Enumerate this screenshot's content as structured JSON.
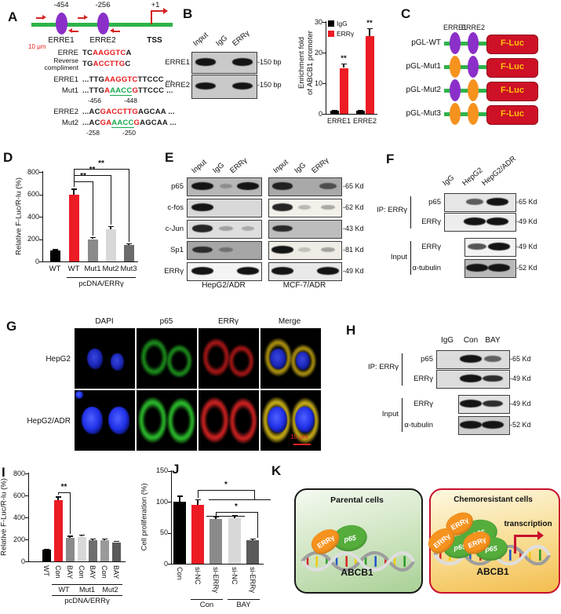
{
  "panel_labels": {
    "A": "A",
    "B": "B",
    "C": "C",
    "D": "D",
    "E": "E",
    "F": "F",
    "G": "G",
    "H": "H",
    "I": "I",
    "J": "J",
    "K": "K"
  },
  "panelA": {
    "erre1_pos": "-454",
    "erre2_pos": "-256",
    "tss_pos": "+1",
    "site_labels": [
      "ERRE1",
      "ERRE2",
      "TSS"
    ],
    "seq_rows": [
      {
        "label": "ERRE",
        "segs": [
          {
            "t": "TC",
            "c": "k"
          },
          {
            "t": "AAGGTC",
            "c": "r"
          },
          {
            "t": "A",
            "c": "k"
          }
        ]
      },
      {
        "label": "Reverse",
        "label2": "compliment",
        "segs": [
          {
            "t": "TG",
            "c": "k"
          },
          {
            "t": "ACCTTG",
            "c": "r"
          },
          {
            "t": "C",
            "c": "k"
          }
        ]
      },
      {
        "label": "ERRE1",
        "segs": [
          {
            "t": "...TTG",
            "c": "k"
          },
          {
            "t": "AAGGTC",
            "c": "r"
          },
          {
            "t": "TTCCC ...",
            "c": "k"
          }
        ]
      },
      {
        "label": "Mut1",
        "segs": [
          {
            "t": "...TTG",
            "c": "k"
          },
          {
            "t": "A",
            "c": "r"
          },
          {
            "t": "AACC",
            "c": "g"
          },
          {
            "t": "G",
            "c": "r"
          },
          {
            "t": "TTCCC ...",
            "c": "k"
          }
        ],
        "pos": [
          "-456",
          "-448"
        ]
      },
      {
        "label": "ERRE2",
        "segs": [
          {
            "t": "...AC",
            "c": "k"
          },
          {
            "t": "GACCTTG",
            "c": "r"
          },
          {
            "t": "AGCAA ...",
            "c": "k"
          }
        ]
      },
      {
        "label": "Mut2",
        "segs": [
          {
            "t": "...AC",
            "c": "k"
          },
          {
            "t": "GA",
            "c": "r"
          },
          {
            "t": "AACC",
            "c": "g"
          },
          {
            "t": "G",
            "c": "r"
          },
          {
            "t": "AGCAA ...",
            "c": "k"
          }
        ],
        "pos": [
          "-258",
          "-250"
        ]
      }
    ]
  },
  "panelB": {
    "lanes": [
      "Input",
      "IgG",
      "ERRγ"
    ],
    "rows": [
      {
        "label": "ERRE1",
        "size": "-150 bp",
        "bands": [
          1,
          0,
          1
        ]
      },
      {
        "label": "ERRE2",
        "size": "-150 bp",
        "bands": [
          1,
          0,
          1
        ]
      }
    ]
  },
  "panelC": {
    "headers": [
      "ERRE1",
      "ERRE2"
    ],
    "luc": "F-Luc",
    "colors": {
      "purple": "#8B2FC9",
      "orange": "#F6921E",
      "line": "#2EB34A",
      "box": "#CE1126",
      "luc_text": "#FFC20E"
    },
    "rows": [
      {
        "label": "pGL-WT",
        "ovals": [
          "purple",
          "purple"
        ]
      },
      {
        "label": "pGL-Mut1",
        "ovals": [
          "orange",
          "purple"
        ]
      },
      {
        "label": "pGL-Mut2",
        "ovals": [
          "purple",
          "orange"
        ]
      },
      {
        "label": "pGL-Mut3",
        "ovals": [
          "orange",
          "orange"
        ]
      }
    ]
  },
  "panelE": {
    "lanes": [
      "Input",
      "IgG",
      "ERRγ"
    ],
    "groups": [
      "HepG2/ADR",
      "MCF-7/ADR"
    ],
    "rows": [
      {
        "label": "p65",
        "size": "-65 Kd",
        "bg": [
          "#b7b7b7",
          "#a9a9a9"
        ],
        "bands1": [
          1,
          0.12,
          1
        ],
        "bands2": [
          0.9,
          0,
          0.55
        ]
      },
      {
        "label": "c-fos",
        "size": "-62 Kd",
        "bg": [
          "#d8d8d8",
          "#f3f0ea"
        ],
        "bands1": [
          1,
          0,
          0
        ],
        "bands2": [
          0.9,
          0.12,
          0.2
        ]
      },
      {
        "label": "c-Jun",
        "size": "-43 Kd",
        "bg": [
          "#dedede",
          "#bdbdbd"
        ],
        "bands1": [
          0.9,
          0.18,
          0.12
        ],
        "bands2": [
          0.85,
          0,
          0
        ]
      },
      {
        "label": "Sp1",
        "size": "-81 Kd",
        "bg": [
          "#a6a6a6",
          "#efece6"
        ],
        "bands1": [
          0.8,
          0.25,
          0
        ],
        "bands2": [
          1,
          0.06,
          0.22
        ]
      },
      {
        "label": "ERRγ",
        "size": "-49 Kd",
        "bg": [
          "#f4f4f4",
          "#e9e9e9"
        ],
        "bands1": [
          1,
          0,
          1
        ],
        "bands2": [
          1,
          0,
          1
        ]
      }
    ]
  },
  "panelF": {
    "lanes": [
      "IgG",
      "HepG2",
      "HepG2/ADR"
    ],
    "ip_label": "IP: ERRγ",
    "input_label": "Input",
    "ip_rows": [
      {
        "label": "p65",
        "size": "-65 Kd",
        "bg": "#e6e6e6",
        "bands": [
          0,
          0.6,
          1
        ]
      },
      {
        "label": "ERRγ",
        "size": "-49 Kd",
        "bg": "#ededed",
        "bands": [
          0,
          1,
          1
        ]
      }
    ],
    "input_rows": [
      {
        "label": "ERRγ",
        "size": "-49 Kd",
        "bg": "#f3f3f3",
        "bands": [
          0.65,
          1
        ]
      },
      {
        "label": "α-tubulin",
        "size": "-52 Kd",
        "bg": "#b9b9b9",
        "bands": [
          1,
          1
        ]
      }
    ]
  },
  "panelG": {
    "cols": [
      "DAPI",
      "p65",
      "ERRγ",
      "Merge"
    ],
    "rows": [
      "HepG2",
      "HepG2/ADR"
    ],
    "scalebar": "10 μm"
  },
  "panelH": {
    "lanes": [
      "IgG",
      "Con",
      "BAY"
    ],
    "ip_label": "IP: ERRγ",
    "input_label": "Input",
    "ip_rows": [
      {
        "label": "p65",
        "size": "-65 Kd",
        "bg": "#dcdcdc",
        "bands": [
          0,
          1,
          0.55
        ]
      },
      {
        "label": "ERRγ",
        "size": "-49 Kd",
        "bg": "#dcdcdc",
        "bands": [
          0,
          1,
          0.85
        ]
      }
    ],
    "input_rows": [
      {
        "label": "ERRγ",
        "size": "-49 Kd",
        "bg": "#e2e2e2",
        "bands": [
          1,
          0.85
        ]
      },
      {
        "label": "α-tubulin",
        "size": "-52 Kd",
        "bg": "#cdcdcd",
        "bands": [
          1,
          1
        ]
      }
    ]
  },
  "panelK": {
    "left_title": "Parental cells",
    "right_title": "Chemoresistant cells",
    "gene": "ABCB1",
    "transcription_label": "transcription",
    "molecules": {
      "errg": "ERRγ",
      "p65": "p65"
    },
    "colors": {
      "left_border": "#1a1a1a",
      "right_border": "#c8102e",
      "errg_fill": "#f6921e",
      "p65_fill": "#55ad3c"
    }
  },
  "chart_data": [
    {
      "id": "B",
      "type": "bar",
      "ylabel_lines": [
        "Enrichment  fold",
        "of ABCB1 promoter"
      ],
      "ylim": [
        0,
        30
      ],
      "yticks": [
        0,
        10,
        20,
        30
      ],
      "categories": [
        "ERRE1",
        "ERRE2"
      ],
      "series": [
        {
          "name": "IgG",
          "color": "#000000",
          "values": [
            1,
            1
          ],
          "errors": [
            0.3,
            0.3
          ]
        },
        {
          "name": "ERRγ",
          "color": "#EC1B24",
          "values": [
            15,
            25.5
          ],
          "errors": [
            1.5,
            2.5
          ]
        }
      ],
      "sig": [
        {
          "cat": 0,
          "label": "**"
        },
        {
          "cat": 1,
          "label": "**"
        }
      ],
      "legend_position": "top-left",
      "grid": false
    },
    {
      "id": "D",
      "type": "bar",
      "ylabel": "Relative F-Luc/R-lu (%)",
      "ylim": [
        0,
        800
      ],
      "yticks": [
        0,
        200,
        400,
        600,
        800
      ],
      "categories": [
        "WT",
        "WT",
        "Mut1",
        "Mut2",
        "Mut3"
      ],
      "values": [
        100,
        600,
        200,
        290,
        150
      ],
      "errors": [
        10,
        50,
        18,
        25,
        12
      ],
      "colors": [
        "#000000",
        "#EC1B24",
        "#8a8a8a",
        "#d8d8d8",
        "#6b6b6b"
      ],
      "group_label": "pcDNA/ERRγ",
      "group_span": [
        1,
        4
      ],
      "brackets": [
        {
          "from": 1,
          "to": 2,
          "label": "**"
        },
        {
          "from": 1,
          "to": 3,
          "label": "**"
        },
        {
          "from": 1,
          "to": 4,
          "label": "**"
        }
      ],
      "grid": false
    },
    {
      "id": "I",
      "type": "bar",
      "ylabel": "Relative F-Luc/R-lu (%)",
      "ylim": [
        0,
        800
      ],
      "yticks": [
        0,
        200,
        400,
        600,
        800
      ],
      "categories": [
        "WT",
        "Con",
        "BAY",
        "Con",
        "BAY",
        "Con",
        "BAY"
      ],
      "values": [
        105,
        555,
        215,
        225,
        190,
        195,
        175
      ],
      "errors": [
        10,
        35,
        18,
        18,
        18,
        15,
        10
      ],
      "colors": [
        "#000000",
        "#EC1B24",
        "#8a8a8a",
        "#d8d8d8",
        "#6e6e6e",
        "#9a9a9a",
        "#5a5a5a"
      ],
      "groups": [
        {
          "label": "WT",
          "span": [
            1,
            2
          ]
        },
        {
          "label": "Mut1",
          "span": [
            3,
            4
          ]
        },
        {
          "label": "Mut2",
          "span": [
            5,
            6
          ]
        }
      ],
      "group_label": "pcDNA/ERRγ",
      "group_span": [
        1,
        6
      ],
      "brackets": [
        {
          "from": 1,
          "to": 2,
          "label": "**"
        }
      ],
      "grid": false
    },
    {
      "id": "J",
      "type": "bar",
      "ylabel": "Cell proliferation (%)",
      "ylim": [
        0,
        150
      ],
      "yticks": [
        0,
        50,
        100,
        150
      ],
      "categories": [
        "Con",
        "si-NC",
        "si-ERRγ",
        "si-NC",
        "si-ERRγ"
      ],
      "values": [
        100,
        95,
        73,
        74,
        38
      ],
      "errors": [
        10,
        9,
        4,
        5,
        3
      ],
      "colors": [
        "#000000",
        "#EC1B24",
        "#8a8a8a",
        "#d8d8d8",
        "#5a5a5a"
      ],
      "groups": [
        {
          "label": "Con",
          "span": [
            1,
            2
          ]
        },
        {
          "label": "BAY",
          "span": [
            3,
            4
          ]
        }
      ],
      "sig_labels": [
        "*",
        "*"
      ],
      "grid": false
    }
  ]
}
